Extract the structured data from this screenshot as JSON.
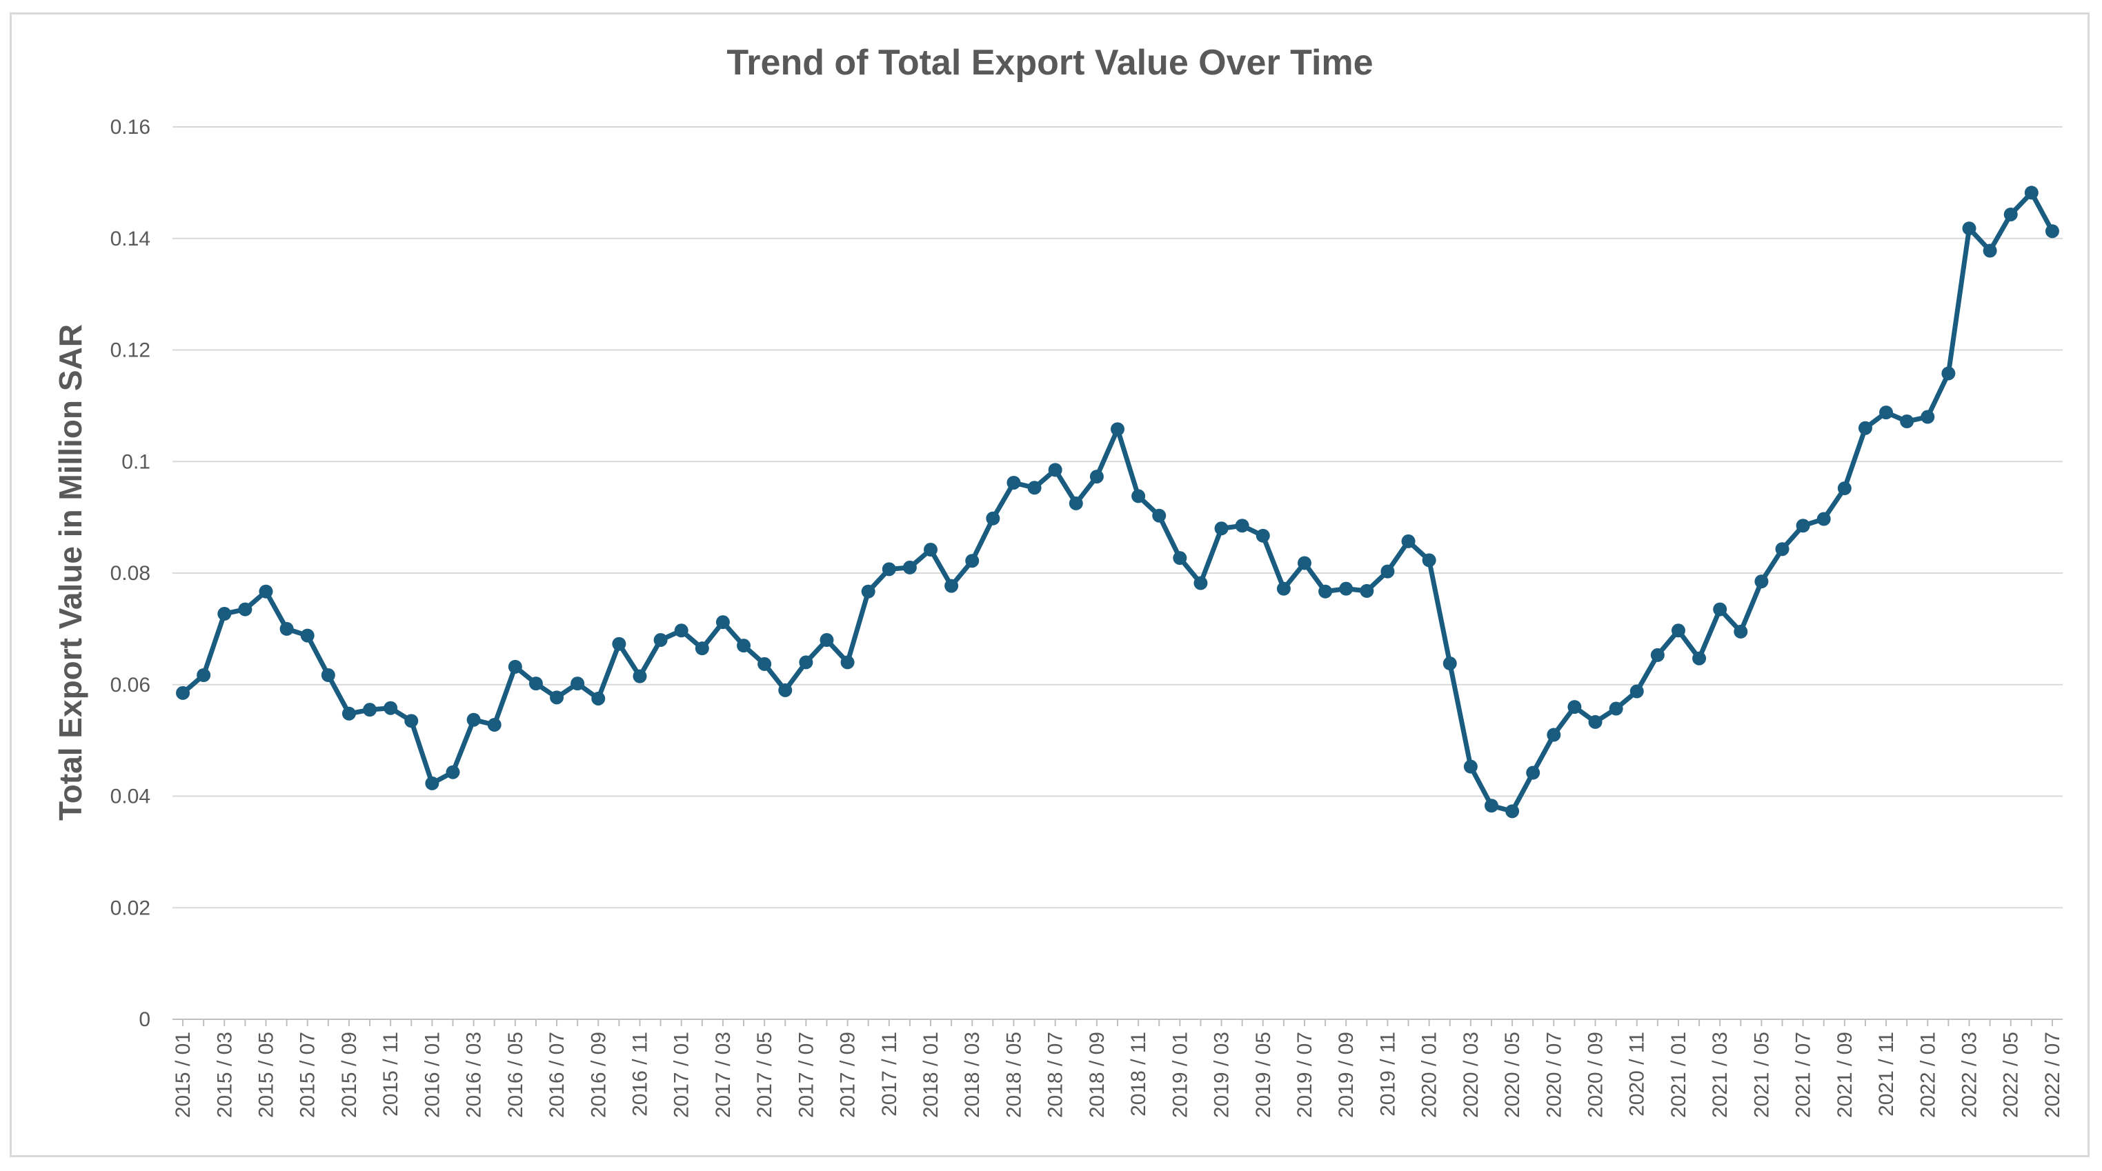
{
  "chart_data": {
    "type": "line",
    "title": "Trend of Total Export Value Over Time",
    "xlabel": "",
    "ylabel": "Total Export Value in Million SAR",
    "ylim": [
      0,
      0.16
    ],
    "yticks": [
      "0",
      "0.02",
      "0.04",
      "0.06",
      "0.08",
      "0.1",
      "0.12",
      "0.14",
      "0.16"
    ],
    "grid": true,
    "legend": "none",
    "colors": {
      "line": "#1a5c80",
      "grid": "#d9d9d9",
      "text": "#595959"
    },
    "x": [
      "2015 / 01",
      "2015 / 02",
      "2015 / 03",
      "2015 / 04",
      "2015 / 05",
      "2015 / 06",
      "2015 / 07",
      "2015 / 08",
      "2015 / 09",
      "2015 / 10",
      "2015 / 11",
      "2015 / 12",
      "2016 / 01",
      "2016 / 02",
      "2016 / 03",
      "2016 / 04",
      "2016 / 05",
      "2016 / 06",
      "2016 / 07",
      "2016 / 08",
      "2016 / 09",
      "2016 / 10",
      "2016 / 11",
      "2016 / 12",
      "2017 / 01",
      "2017 / 02",
      "2017 / 03",
      "2017 / 04",
      "2017 / 05",
      "2017 / 06",
      "2017 / 07",
      "2017 / 08",
      "2017 / 09",
      "2017 / 10",
      "2017 / 11",
      "2017 / 12",
      "2018 / 01",
      "2018 / 02",
      "2018 / 03",
      "2018 / 04",
      "2018 / 05",
      "2018 / 06",
      "2018 / 07",
      "2018 / 08",
      "2018 / 09",
      "2018 / 10",
      "2018 / 11",
      "2018 / 12",
      "2019 / 01",
      "2019 / 02",
      "2019 / 03",
      "2019 / 04",
      "2019 / 05",
      "2019 / 06",
      "2019 / 07",
      "2019 / 08",
      "2019 / 09",
      "2019 / 10",
      "2019 / 11",
      "2019 / 12",
      "2020 / 01",
      "2020 / 02",
      "2020 / 03",
      "2020 / 04",
      "2020 / 05",
      "2020 / 06",
      "2020 / 07",
      "2020 / 08",
      "2020 / 09",
      "2020 / 10",
      "2020 / 11",
      "2020 / 12",
      "2021 / 01",
      "2021 / 02",
      "2021 / 03",
      "2021 / 04",
      "2021 / 05",
      "2021 / 06",
      "2021 / 07",
      "2021 / 08",
      "2021 / 09",
      "2021 / 10",
      "2021 / 11",
      "2021 / 12",
      "2022 / 01",
      "2022 / 02",
      "2022 / 03",
      "2022 / 04",
      "2022 / 05",
      "2022 / 06",
      "2022 / 07"
    ],
    "xtick_labels": [
      "2015 / 01",
      "2015 / 03",
      "2015 / 05",
      "2015 / 07",
      "2015 / 09",
      "2015 / 11",
      "2016 / 01",
      "2016 / 03",
      "2016 / 05",
      "2016 / 07",
      "2016 / 09",
      "2016 / 11",
      "2017 / 01",
      "2017 / 03",
      "2017 / 05",
      "2017 / 07",
      "2017 / 09",
      "2017 / 11",
      "2018 / 01",
      "2018 / 03",
      "2018 / 05",
      "2018 / 07",
      "2018 / 09",
      "2018 / 11",
      "2019 / 01",
      "2019 / 03",
      "2019 / 05",
      "2019 / 07",
      "2019 / 09",
      "2019 / 11",
      "2020 / 01",
      "2020 / 03",
      "2020 / 05",
      "2020 / 07",
      "2020 / 09",
      "2020 / 11",
      "2021 / 01",
      "2021 / 03",
      "2021 / 05",
      "2021 / 07",
      "2021 / 09",
      "2021 / 11",
      "2022 / 01",
      "2022 / 03",
      "2022 / 05",
      "2022 / 07"
    ],
    "series": [
      {
        "name": "Total Export Value",
        "values": [
          0.0585,
          0.0617,
          0.0727,
          0.0735,
          0.0767,
          0.07,
          0.0688,
          0.0617,
          0.0548,
          0.0555,
          0.0558,
          0.0535,
          0.0423,
          0.0443,
          0.0537,
          0.0528,
          0.0632,
          0.0602,
          0.0577,
          0.0602,
          0.0575,
          0.0673,
          0.0615,
          0.068,
          0.0697,
          0.0665,
          0.0712,
          0.067,
          0.0637,
          0.059,
          0.064,
          0.068,
          0.064,
          0.0767,
          0.0807,
          0.081,
          0.0842,
          0.0777,
          0.0822,
          0.0898,
          0.0962,
          0.0953,
          0.0985,
          0.0925,
          0.0973,
          0.1058,
          0.0938,
          0.0903,
          0.0827,
          0.0782,
          0.088,
          0.0885,
          0.0867,
          0.0772,
          0.0818,
          0.0767,
          0.0772,
          0.0768,
          0.0803,
          0.0857,
          0.0823,
          0.0638,
          0.0453,
          0.0383,
          0.0373,
          0.0442,
          0.051,
          0.056,
          0.0533,
          0.0557,
          0.0588,
          0.0653,
          0.0697,
          0.0647,
          0.0735,
          0.0695,
          0.0785,
          0.0843,
          0.0885,
          0.0897,
          0.0952,
          0.106,
          0.1088,
          0.1072,
          0.108,
          0.1158,
          0.1418,
          0.1378,
          0.1443,
          0.1482,
          0.1413
        ]
      }
    ]
  }
}
